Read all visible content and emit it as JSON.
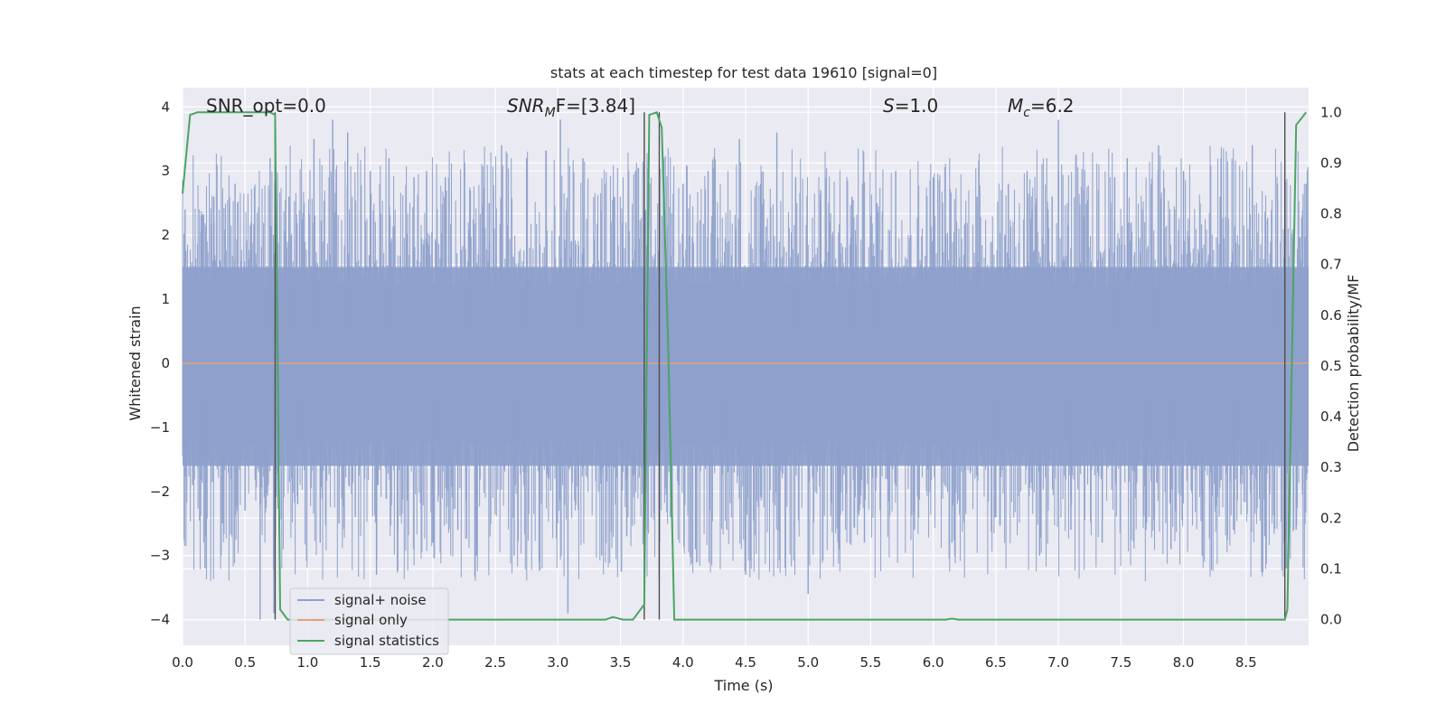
{
  "chart_data": {
    "type": "line",
    "title": "stats at each timestep for test data 19610 [signal=0]",
    "xlabel": "Time (s)",
    "ylabel_left": "Whitened strain",
    "ylabel_right": "Detection probability/MF",
    "xlim": [
      0,
      9.0
    ],
    "ylim_left": [
      -4.4,
      4.3
    ],
    "ylim_right": [
      0,
      1.0
    ],
    "x_ticks": [
      "0.0",
      "0.5",
      "1.0",
      "1.5",
      "2.0",
      "2.5",
      "3.0",
      "3.5",
      "4.0",
      "4.5",
      "5.0",
      "5.5",
      "6.0",
      "6.5",
      "7.0",
      "7.5",
      "8.0",
      "8.5"
    ],
    "y_ticks_left": [
      "4",
      "3",
      "2",
      "1",
      "0",
      "−1",
      "−2",
      "−3",
      "−4"
    ],
    "y_ticks_right": [
      "1.0",
      "0.9",
      "0.8",
      "0.7",
      "0.6",
      "0.5",
      "0.4",
      "0.3",
      "0.2",
      "0.1",
      "0.0"
    ],
    "grid": true,
    "legend_placement": "lower-left",
    "annotations": {
      "snr_opt": "SNR_opt=0.0",
      "snr_mf_pre": "SNR",
      "snr_mf_sub": "M",
      "snr_mf_post": "F=[3.84]",
      "s_var": "S",
      "s_val": "=1.0",
      "mc_var": "M",
      "mc_sub": "c",
      "mc_val": "=6.2"
    },
    "vertical_markers": [
      0.74,
      3.69,
      3.81,
      8.81
    ],
    "series": [
      {
        "name": "signal+ noise",
        "color": "#8da0cb",
        "description_values": "whitened strain noise, roughly Gaussian, peaks between -4.0 and 3.8",
        "sample_peaks": [
          [
            0.02,
            2.4
          ],
          [
            0.08,
            -1.9
          ],
          [
            0.15,
            2.3
          ],
          [
            0.18,
            -3.2
          ],
          [
            0.25,
            2.6
          ],
          [
            0.32,
            -2.5
          ],
          [
            0.42,
            2.8
          ],
          [
            0.5,
            -2.3
          ],
          [
            0.55,
            2.2
          ],
          [
            0.62,
            -4.0
          ],
          [
            0.7,
            3.2
          ],
          [
            0.73,
            -3.9
          ],
          [
            0.85,
            2.6
          ],
          [
            0.92,
            -2.2
          ],
          [
            1.05,
            3.5
          ],
          [
            1.1,
            -2.8
          ],
          [
            1.2,
            3.8
          ],
          [
            1.25,
            -2.5
          ],
          [
            1.32,
            3.6
          ],
          [
            1.38,
            -2.4
          ],
          [
            1.5,
            3.0
          ],
          [
            1.55,
            -3.3
          ],
          [
            1.65,
            3.2
          ],
          [
            1.72,
            -2.6
          ],
          [
            1.85,
            2.9
          ],
          [
            1.95,
            3.0
          ],
          [
            2.0,
            -2.8
          ],
          [
            2.1,
            2.9
          ],
          [
            2.2,
            -2.6
          ],
          [
            2.3,
            2.7
          ],
          [
            2.35,
            -3.0
          ],
          [
            2.45,
            2.5
          ],
          [
            2.55,
            3.4
          ],
          [
            2.65,
            -3.0
          ],
          [
            2.75,
            3.2
          ],
          [
            2.85,
            -3.1
          ],
          [
            3.02,
            3.8
          ],
          [
            3.08,
            -3.9
          ],
          [
            3.2,
            3.2
          ],
          [
            3.35,
            -3.0
          ],
          [
            3.45,
            2.6
          ],
          [
            3.55,
            -2.7
          ],
          [
            3.62,
            3.0
          ],
          [
            3.72,
            2.2
          ],
          [
            3.9,
            -2.4
          ],
          [
            4.0,
            2.8
          ],
          [
            4.1,
            -2.9
          ],
          [
            4.2,
            3.0
          ],
          [
            4.35,
            -2.6
          ],
          [
            4.45,
            3.5
          ],
          [
            4.5,
            -3.3
          ],
          [
            4.62,
            2.8
          ],
          [
            4.75,
            3.6
          ],
          [
            4.9,
            2.9
          ],
          [
            5.0,
            -3.6
          ],
          [
            5.1,
            2.7
          ],
          [
            5.25,
            -2.9
          ],
          [
            5.35,
            2.6
          ],
          [
            5.45,
            -2.8
          ],
          [
            5.55,
            2.5
          ],
          [
            5.7,
            3.0
          ],
          [
            5.85,
            -2.6
          ],
          [
            6.0,
            2.9
          ],
          [
            6.15,
            -2.8
          ],
          [
            6.35,
            2.6
          ],
          [
            6.5,
            -2.4
          ],
          [
            6.6,
            2.8
          ],
          [
            6.75,
            3.0
          ],
          [
            6.85,
            -3.0
          ],
          [
            6.95,
            2.6
          ],
          [
            7.0,
            3.8
          ],
          [
            7.1,
            -2.6
          ],
          [
            7.2,
            2.7
          ],
          [
            7.35,
            -2.8
          ],
          [
            7.45,
            2.9
          ],
          [
            7.55,
            3.2
          ],
          [
            7.7,
            -2.6
          ],
          [
            7.8,
            3.4
          ],
          [
            7.9,
            -2.9
          ],
          [
            8.0,
            3.0
          ],
          [
            8.15,
            -3.0
          ],
          [
            8.3,
            3.2
          ],
          [
            8.4,
            -2.6
          ],
          [
            8.55,
            3.4
          ],
          [
            8.65,
            -2.7
          ],
          [
            8.75,
            2.8
          ],
          [
            8.9,
            -2.6
          ],
          [
            8.98,
            2.8
          ]
        ]
      },
      {
        "name": "signal only",
        "color": "#e5a07c",
        "values_description": "zero",
        "y": 0
      },
      {
        "name": "signal statistics",
        "color": "#4aa564",
        "axis": "right",
        "points": [
          [
            0.0,
            0.84
          ],
          [
            0.06,
            0.995
          ],
          [
            0.12,
            1.0
          ],
          [
            0.7,
            1.0
          ],
          [
            0.74,
            0.995
          ],
          [
            0.78,
            0.02
          ],
          [
            0.84,
            0.0
          ],
          [
            1.0,
            0.0
          ],
          [
            2.0,
            0.0
          ],
          [
            3.0,
            0.0
          ],
          [
            3.38,
            0.0
          ],
          [
            3.44,
            0.005
          ],
          [
            3.52,
            0.0
          ],
          [
            3.6,
            0.0
          ],
          [
            3.69,
            0.03
          ],
          [
            3.73,
            0.995
          ],
          [
            3.79,
            1.0
          ],
          [
            3.83,
            0.97
          ],
          [
            3.88,
            0.55
          ],
          [
            3.93,
            0.0
          ],
          [
            4.5,
            0.0
          ],
          [
            5.5,
            0.0
          ],
          [
            6.1,
            0.0
          ],
          [
            6.15,
            0.002
          ],
          [
            6.2,
            0.0
          ],
          [
            7.0,
            0.0
          ],
          [
            8.0,
            0.0
          ],
          [
            8.81,
            0.0
          ],
          [
            8.83,
            0.02
          ],
          [
            8.9,
            0.975
          ],
          [
            8.98,
            1.0
          ]
        ]
      }
    ]
  }
}
